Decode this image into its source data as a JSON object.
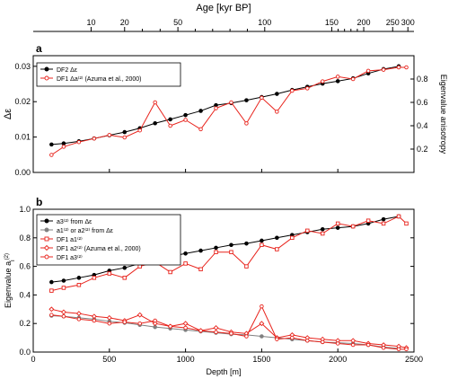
{
  "figure": {
    "top_axis_title": "Age [kyr BP]",
    "top_ticks_labeled": [
      10,
      20,
      50,
      100,
      150,
      200,
      250,
      300
    ],
    "top_ticks_minor": [
      30,
      40,
      60,
      70,
      80,
      90,
      160,
      170,
      180,
      190
    ]
  },
  "chart_data": [
    {
      "type": "line",
      "panel_label": "a",
      "xlabel": "",
      "ylabel": "Δε",
      "ylabel_right": "Eigenvalue anisotropy",
      "xlim": [
        0,
        2500
      ],
      "ylim": [
        0,
        0.033
      ],
      "ylim_right": [
        0,
        1.0
      ],
      "yticks": [
        "0.00",
        "0.01",
        "0.02",
        "0.03"
      ],
      "yticks_right": [
        "0.2",
        "0.4",
        "0.6",
        "0.8"
      ],
      "legend_position": "top-left",
      "grid": false,
      "series": [
        {
          "name": "DF2 Δε",
          "color": "#000000",
          "marker": "filled-circle",
          "x": [
            120,
            200,
            300,
            400,
            500,
            600,
            700,
            800,
            900,
            1000,
            1100,
            1200,
            1300,
            1400,
            1500,
            1600,
            1700,
            1800,
            1900,
            2000,
            2100,
            2200,
            2300,
            2400
          ],
          "y": [
            0.0079,
            0.0082,
            0.0088,
            0.0096,
            0.0105,
            0.0114,
            0.0125,
            0.0139,
            0.015,
            0.0162,
            0.0174,
            0.019,
            0.0196,
            0.0204,
            0.0213,
            0.0222,
            0.0233,
            0.0242,
            0.0251,
            0.0258,
            0.0266,
            0.028,
            0.0292,
            0.03
          ]
        },
        {
          "name": "DF1 Δa⁽²⁾ (Azuma et al., 2000)",
          "color": "#e8231c",
          "marker": "open-circle",
          "axis": "right",
          "x": [
            120,
            200,
            300,
            400,
            500,
            600,
            700,
            800,
            900,
            1000,
            1100,
            1200,
            1300,
            1400,
            1500,
            1600,
            1700,
            1800,
            1900,
            2000,
            2100,
            2200,
            2300,
            2400,
            2450
          ],
          "y": [
            0.15,
            0.22,
            0.26,
            0.29,
            0.32,
            0.3,
            0.36,
            0.6,
            0.4,
            0.45,
            0.37,
            0.55,
            0.6,
            0.42,
            0.64,
            0.52,
            0.7,
            0.72,
            0.78,
            0.82,
            0.8,
            0.87,
            0.88,
            0.9,
            0.9
          ]
        }
      ]
    },
    {
      "type": "line",
      "panel_label": "b",
      "xlabel": "Depth [m]",
      "ylabel": "Eigenvalue a",
      "ylabel_sub": "i",
      "ylabel_sup": "(2)",
      "xlim": [
        0,
        2500
      ],
      "ylim": [
        0,
        1.0
      ],
      "xticks": [
        0,
        500,
        1000,
        1500,
        2000,
        2500
      ],
      "yticks": [
        "0.0",
        "0.2",
        "0.4",
        "0.6",
        "0.8",
        "1.0"
      ],
      "legend_position": "top-left",
      "grid": false,
      "series": [
        {
          "name": "a3⁽²⁾ from Δε",
          "color": "#000000",
          "marker": "filled-circle",
          "x": [
            120,
            200,
            300,
            400,
            500,
            600,
            700,
            800,
            900,
            1000,
            1100,
            1200,
            1300,
            1400,
            1500,
            1600,
            1700,
            1800,
            1900,
            2000,
            2100,
            2200,
            2300,
            2400
          ],
          "y": [
            0.49,
            0.5,
            0.52,
            0.54,
            0.57,
            0.59,
            0.62,
            0.65,
            0.67,
            0.69,
            0.71,
            0.73,
            0.75,
            0.76,
            0.78,
            0.8,
            0.82,
            0.84,
            0.86,
            0.87,
            0.88,
            0.9,
            0.93,
            0.95
          ]
        },
        {
          "name": "a1⁽²⁾ or a2⁽²⁾ from Δε",
          "color": "#808080",
          "marker": "filled-circle",
          "x": [
            120,
            200,
            300,
            400,
            500,
            600,
            700,
            800,
            900,
            1000,
            1100,
            1200,
            1300,
            1400,
            1500,
            1600,
            1700,
            1800,
            1900,
            2000,
            2100,
            2200,
            2300,
            2400
          ],
          "y": [
            0.255,
            0.25,
            0.24,
            0.23,
            0.215,
            0.205,
            0.19,
            0.175,
            0.165,
            0.155,
            0.145,
            0.135,
            0.125,
            0.12,
            0.11,
            0.1,
            0.09,
            0.08,
            0.07,
            0.065,
            0.06,
            0.05,
            0.035,
            0.025
          ]
        },
        {
          "name": "DF1 a1⁽²⁾",
          "color": "#e8231c",
          "marker": "open-square",
          "x": [
            120,
            200,
            300,
            400,
            500,
            600,
            700,
            800,
            900,
            1000,
            1100,
            1200,
            1300,
            1400,
            1500,
            1600,
            1700,
            1800,
            1900,
            2000,
            2100,
            2200,
            2300,
            2400,
            2450
          ],
          "y": [
            0.43,
            0.45,
            0.47,
            0.52,
            0.55,
            0.52,
            0.6,
            0.63,
            0.56,
            0.62,
            0.58,
            0.7,
            0.7,
            0.6,
            0.75,
            0.72,
            0.8,
            0.85,
            0.83,
            0.9,
            0.88,
            0.92,
            0.9,
            0.95,
            0.9
          ]
        },
        {
          "name": "DF1 a2⁽²⁾ (Azuma et al., 2000)",
          "color": "#e8231c",
          "marker": "open-diamond",
          "x": [
            120,
            200,
            300,
            400,
            500,
            600,
            700,
            800,
            900,
            1000,
            1100,
            1200,
            1300,
            1400,
            1500,
            1600,
            1700,
            1800,
            1900,
            2000,
            2100,
            2200,
            2300,
            2400,
            2450
          ],
          "y": [
            0.3,
            0.28,
            0.27,
            0.25,
            0.24,
            0.22,
            0.26,
            0.2,
            0.18,
            0.2,
            0.15,
            0.17,
            0.14,
            0.13,
            0.2,
            0.1,
            0.12,
            0.1,
            0.09,
            0.08,
            0.08,
            0.06,
            0.05,
            0.04,
            0.03
          ]
        },
        {
          "name": "DF1 a3⁽²⁾",
          "color": "#e8231c",
          "marker": "open-circle",
          "x": [
            120,
            200,
            300,
            400,
            500,
            600,
            700,
            800,
            900,
            1000,
            1100,
            1200,
            1300,
            1400,
            1500,
            1600,
            1700,
            1800,
            1900,
            2000,
            2100,
            2200,
            2300,
            2400,
            2450
          ],
          "y": [
            0.26,
            0.25,
            0.23,
            0.22,
            0.2,
            0.21,
            0.2,
            0.22,
            0.18,
            0.17,
            0.15,
            0.14,
            0.13,
            0.11,
            0.32,
            0.09,
            0.1,
            0.08,
            0.07,
            0.06,
            0.05,
            0.05,
            0.03,
            0.02,
            0.02
          ]
        }
      ]
    }
  ]
}
